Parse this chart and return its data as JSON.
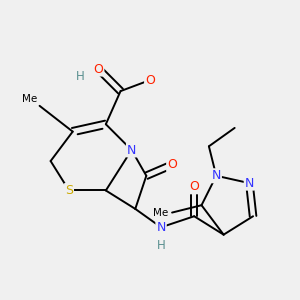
{
  "background_color": "#f0f0f0",
  "bg_hex": "#f0f0f0",
  "atom_colors": {
    "S": "#ccaa00",
    "N": "#3333ff",
    "O": "#ff2200",
    "H": "#5a9090",
    "C": "#000000"
  }
}
